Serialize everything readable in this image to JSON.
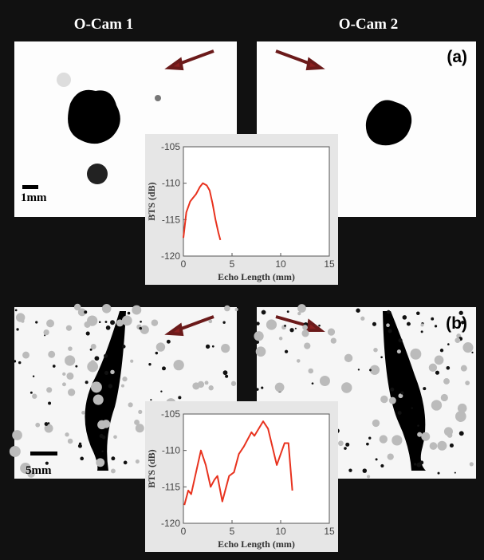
{
  "figure": {
    "columns": [
      "O-Cam 1",
      "O-Cam 2"
    ],
    "panels": [
      "(a)",
      "(b)"
    ],
    "scales": [
      "1mm",
      "5mm"
    ]
  },
  "chart_data": [
    {
      "type": "line",
      "xlabel": "Echo Length (mm)",
      "ylabel": "BTS (dB)",
      "color": "#e8321e",
      "x": [
        0,
        0.3,
        0.7,
        1,
        1.3,
        1.7,
        2,
        2.4,
        2.7,
        3,
        3.3,
        3.6,
        3.8
      ],
      "values": [
        -117.5,
        -114,
        -112.5,
        -112,
        -111.5,
        -110.5,
        -110,
        -110.3,
        -111,
        -112.8,
        -115,
        -116.8,
        -117.8
      ],
      "xlim": [
        0,
        15
      ],
      "xticks": [
        0,
        5,
        10,
        15
      ],
      "ylim": [
        -120,
        -105
      ],
      "yticks": [
        -105,
        -110,
        -115,
        -120
      ]
    },
    {
      "type": "line",
      "xlabel": "Echo Length (mm)",
      "ylabel": "BTS (dB)",
      "color": "#e8321e",
      "x": [
        0.1,
        0.5,
        0.8,
        1.3,
        1.8,
        2.3,
        2.8,
        3.2,
        3.5,
        4,
        4.7,
        5.2,
        5.7,
        6.2,
        7,
        7.3,
        8.2,
        8.7,
        9.6,
        10.4,
        10.8,
        11.2
      ],
      "values": [
        -117.5,
        -115.5,
        -116,
        -113,
        -110,
        -112,
        -115,
        -114,
        -113.5,
        -117,
        -113.5,
        -113,
        -110.5,
        -109.5,
        -107.5,
        -108,
        -106,
        -107,
        -112,
        -109,
        -109,
        -115.5
      ],
      "xlim": [
        0,
        15
      ],
      "xticks": [
        0,
        5,
        10,
        15
      ],
      "ylim": [
        -120,
        -105
      ],
      "yticks": [
        -105,
        -110,
        -115,
        -120
      ]
    }
  ]
}
